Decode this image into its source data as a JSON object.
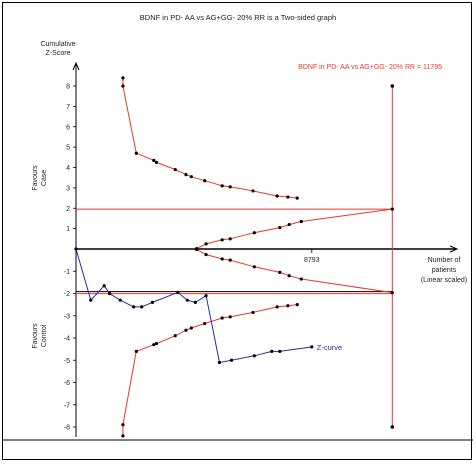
{
  "chart_data": {
    "type": "line",
    "title": "BDNF in PD- AA vs AG+GG- 20% RR is a Two-sided graph",
    "ylabel_lines": [
      "Cumulative",
      "Z-Score"
    ],
    "favours_case_lines": [
      "Favours",
      "Case"
    ],
    "favours_control_lines": [
      "Favours",
      "Control"
    ],
    "xlabel_lines": [
      "Number of",
      "patients",
      "(Linear scaled)"
    ],
    "ylim": [
      -8,
      8
    ],
    "xlim": [
      0,
      13200
    ],
    "yticks": [
      8,
      7,
      6,
      5,
      4,
      3,
      2,
      1,
      -1,
      -2,
      -3,
      -4,
      -5,
      -6,
      -7,
      -8
    ],
    "x_tick_label": "8793",
    "x_tick_value": 8793,
    "required_information_size": 11795,
    "ris_label": "BDNF in PD- AA vs AG+GG- 20% RR = 11795",
    "conventional_boundary": 1.96,
    "colors": {
      "boundary": "#e8372f",
      "z_curve": "#2b2b9e",
      "axis": "#000000",
      "points": "#000000"
    },
    "series": [
      {
        "name": "Z-curve",
        "x": [
          0,
          550,
          1050,
          1250,
          1650,
          2150,
          2450,
          2850,
          3800,
          4150,
          4450,
          4850,
          5350,
          5800,
          6650,
          7300,
          7600,
          8793
        ],
        "y": [
          0,
          -2.3,
          -1.65,
          -2.0,
          -2.3,
          -2.6,
          -2.6,
          -2.4,
          -1.95,
          -2.3,
          -2.4,
          -2.1,
          -5.1,
          -5.0,
          -4.8,
          -4.6,
          -4.6,
          -4.4
        ]
      }
    ],
    "upper_monitoring_boundary": {
      "x": [
        1750,
        1750,
        2250,
        2900,
        3000,
        3700,
        4100,
        4300,
        4800,
        5450,
        5750,
        6600,
        7500,
        7900,
        8250
      ],
      "y": [
        8.4,
        8.0,
        4.7,
        4.35,
        4.25,
        3.9,
        3.65,
        3.55,
        3.35,
        3.1,
        3.05,
        2.85,
        2.6,
        2.55,
        2.5
      ]
    },
    "lower_monitoring_boundary": {
      "x": [
        1750,
        1750,
        2250,
        2900,
        3000,
        3700,
        4100,
        4300,
        4800,
        5450,
        5750,
        6600,
        7500,
        7900,
        8250
      ],
      "y": [
        -8.4,
        -7.9,
        -4.6,
        -4.3,
        -4.25,
        -3.9,
        -3.65,
        -3.55,
        -3.35,
        -3.1,
        -3.05,
        -2.85,
        -2.6,
        -2.55,
        -2.5
      ]
    },
    "upper_futility_boundary": {
      "x": [
        4500,
        4850,
        5450,
        5750,
        6650,
        7600,
        7950,
        8400,
        11795
      ],
      "y": [
        0.02,
        0.25,
        0.45,
        0.5,
        0.8,
        1.05,
        1.2,
        1.35,
        1.96
      ]
    },
    "lower_futility_boundary": {
      "x": [
        4500,
        4850,
        5450,
        5750,
        6650,
        7600,
        7950,
        8400,
        11795
      ],
      "y": [
        -0.02,
        -0.25,
        -0.45,
        -0.5,
        -0.8,
        -1.05,
        -1.2,
        -1.35,
        -1.96
      ]
    }
  }
}
